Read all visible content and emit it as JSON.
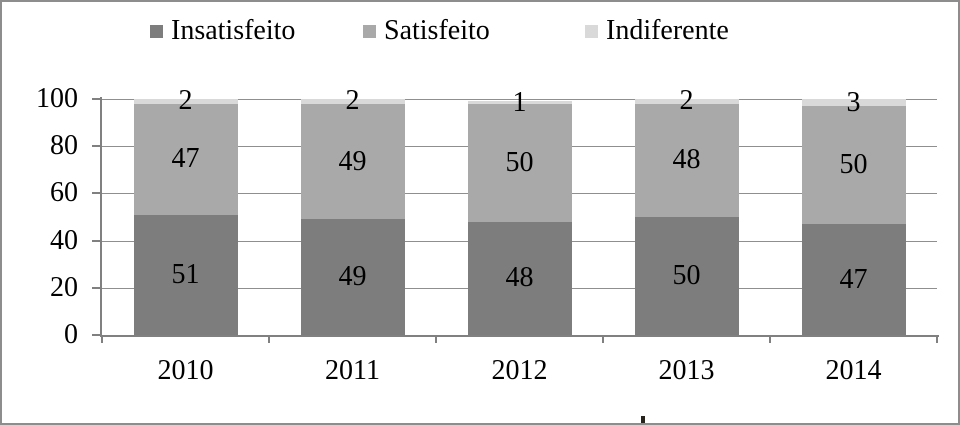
{
  "chart_data": {
    "type": "bar",
    "stacked": true,
    "title": "",
    "categories": [
      "2010",
      "2011",
      "2012",
      "2013",
      "2014"
    ],
    "series": [
      {
        "name": "Insatisfeito",
        "color": "#7d7d7d",
        "values": [
          51,
          49,
          48,
          50,
          47
        ]
      },
      {
        "name": "Satisfeito",
        "color": "#a9a9a9",
        "values": [
          47,
          49,
          50,
          48,
          50
        ]
      },
      {
        "name": "Indiferente",
        "color": "#d9d9d9",
        "values": [
          2,
          2,
          1,
          2,
          3
        ]
      }
    ],
    "ylim": [
      0,
      100
    ],
    "yticks": [
      0,
      20,
      40,
      60,
      80,
      100
    ],
    "grid": true,
    "legend_position": "top",
    "axis_color": "#808080",
    "gridline_color": "#8f8f8f",
    "text_color": "#000000"
  }
}
